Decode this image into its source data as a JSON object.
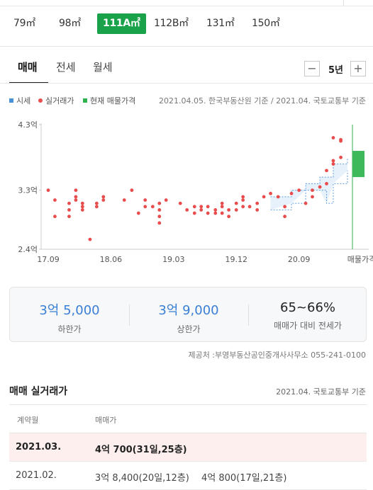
{
  "size_tabs": [
    {
      "label": "79㎡",
      "active": false
    },
    {
      "label": "98㎡",
      "active": false
    },
    {
      "label": "111A㎡",
      "active": true
    },
    {
      "label": "112B㎡",
      "active": false
    },
    {
      "label": "131㎡",
      "active": false
    },
    {
      "label": "150㎡",
      "active": false
    }
  ],
  "deal_tabs": [
    {
      "label": "매매",
      "active": true
    },
    {
      "label": "전세",
      "active": false
    },
    {
      "label": "월세",
      "active": false
    }
  ],
  "period": {
    "minus": "−",
    "value": "5년",
    "plus": "+"
  },
  "legend": {
    "items": [
      {
        "label": "시세",
        "color": "#4a90d9"
      },
      {
        "label": "실거래가",
        "color": "#e84c4c"
      },
      {
        "label": "현재 매물가격",
        "color": "#2bb24c"
      }
    ],
    "source": "2021.04.05. 한국부동산원 기준 / 2021.04. 국토교통부 기준"
  },
  "chart_data": {
    "type": "scatter",
    "y_ticks": [
      "4.3억",
      "3.3억",
      "2.4억"
    ],
    "ylim": [
      2.4,
      4.3
    ],
    "x_ticks": [
      "17.09",
      "18.06",
      "19.03",
      "19.12",
      "20.09",
      "매물가격"
    ],
    "x_tick_values": [
      2017.67,
      2018.42,
      2019.17,
      2019.92,
      2020.67
    ],
    "xlim": [
      2017.67,
      2021.25
    ],
    "current_listing": {
      "low": 3.5,
      "high": 3.9
    },
    "market_band": {
      "low": [
        [
          2020.33,
          3.0
        ],
        [
          2020.58,
          3.1
        ],
        [
          2020.75,
          3.3
        ],
        [
          2020.92,
          3.3
        ],
        [
          2021.0,
          3.1
        ],
        [
          2021.08,
          3.4
        ],
        [
          2021.25,
          3.6
        ]
      ],
      "high": [
        [
          2020.33,
          3.2
        ],
        [
          2020.58,
          3.3
        ],
        [
          2020.75,
          3.4
        ],
        [
          2020.92,
          3.5
        ],
        [
          2021.0,
          3.5
        ],
        [
          2021.08,
          3.7
        ],
        [
          2021.25,
          3.8
        ]
      ]
    },
    "transactions": [
      [
        2017.67,
        3.3
      ],
      [
        2017.75,
        3.15
      ],
      [
        2017.75,
        2.9
      ],
      [
        2017.92,
        3.1
      ],
      [
        2017.92,
        3.0
      ],
      [
        2017.92,
        2.9
      ],
      [
        2018.0,
        3.3
      ],
      [
        2018.0,
        3.2
      ],
      [
        2018.0,
        3.15
      ],
      [
        2018.08,
        3.1
      ],
      [
        2018.08,
        3.05
      ],
      [
        2018.08,
        3.0
      ],
      [
        2018.17,
        2.55
      ],
      [
        2018.25,
        3.05
      ],
      [
        2018.25,
        3.1
      ],
      [
        2018.33,
        3.15
      ],
      [
        2018.33,
        3.2
      ],
      [
        2018.58,
        3.15
      ],
      [
        2018.67,
        3.3
      ],
      [
        2018.75,
        2.95
      ],
      [
        2018.83,
        3.15
      ],
      [
        2018.83,
        3.05
      ],
      [
        2018.92,
        3.05
      ],
      [
        2019.0,
        3.1
      ],
      [
        2019.0,
        3.0
      ],
      [
        2019.0,
        2.9
      ],
      [
        2019.0,
        2.8
      ],
      [
        2019.08,
        3.15
      ],
      [
        2019.25,
        3.1
      ],
      [
        2019.33,
        3.0
      ],
      [
        2019.42,
        3.05
      ],
      [
        2019.42,
        2.95
      ],
      [
        2019.5,
        3.05
      ],
      [
        2019.5,
        3.0
      ],
      [
        2019.58,
        2.95
      ],
      [
        2019.58,
        3.05
      ],
      [
        2019.67,
        3.0
      ],
      [
        2019.67,
        2.95
      ],
      [
        2019.75,
        2.95
      ],
      [
        2019.75,
        3.05
      ],
      [
        2019.75,
        3.1
      ],
      [
        2019.83,
        3.0
      ],
      [
        2019.83,
        2.9
      ],
      [
        2019.92,
        3.0
      ],
      [
        2019.92,
        3.1
      ],
      [
        2020.0,
        3.05
      ],
      [
        2020.0,
        3.15
      ],
      [
        2020.0,
        3.2
      ],
      [
        2020.08,
        3.05
      ],
      [
        2020.17,
        3.0
      ],
      [
        2020.17,
        3.1
      ],
      [
        2020.25,
        3.2
      ],
      [
        2020.33,
        3.25
      ],
      [
        2020.42,
        3.2
      ],
      [
        2020.5,
        3.05
      ],
      [
        2020.5,
        2.9
      ],
      [
        2020.58,
        3.25
      ],
      [
        2020.67,
        3.3
      ],
      [
        2020.75,
        3.1
      ],
      [
        2020.83,
        3.2
      ],
      [
        2020.83,
        3.3
      ],
      [
        2020.92,
        3.35
      ],
      [
        2021.0,
        3.4
      ],
      [
        2021.0,
        3.6
      ],
      [
        2021.08,
        3.7
      ],
      [
        2021.08,
        3.75
      ],
      [
        2021.17,
        3.8
      ],
      [
        2021.17,
        4.05
      ],
      [
        2021.08,
        4.1
      ],
      [
        2021.17,
        4.07
      ]
    ]
  },
  "summary": {
    "low": {
      "value": "3억 5,000",
      "label": "하한가"
    },
    "high": {
      "value": "3억 9,000",
      "label": "상한가"
    },
    "ratio": {
      "value": "65~66%",
      "label": "매매가 대비 전세가"
    }
  },
  "provider": "제공처 :부영부동산공인중개사사무소 055-241-0100",
  "transactions_section": {
    "title": "매매 실거래가",
    "source": "2021.04. 국토교통부 기준",
    "headers": [
      "계약월",
      "매매가"
    ],
    "rows": [
      {
        "month": "2021.03.",
        "prices": [
          "4억 700(31일,25층)"
        ],
        "highlight": true
      },
      {
        "month": "2021.02.",
        "prices": [
          "3억 8,400(20일,12층)",
          "4억 800(17일,21층)"
        ],
        "highlight": false
      }
    ]
  }
}
